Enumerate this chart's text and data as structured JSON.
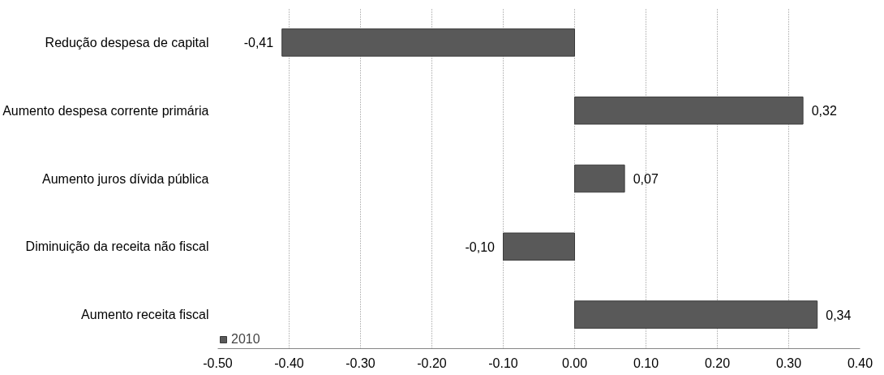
{
  "chart_data": {
    "type": "bar",
    "orientation": "horizontal",
    "categories": [
      "Redução despesa de capital",
      "Aumento despesa corrente primária",
      "Aumento juros dívida pública",
      "Diminuição da receita não fiscal",
      "Aumento receita fiscal"
    ],
    "series": [
      {
        "name": "2010",
        "color": "#595959",
        "values": [
          -0.41,
          0.32,
          0.07,
          -0.1,
          0.34
        ],
        "value_labels": [
          "-0,41",
          "0,32",
          "0,07",
          "-0,10",
          "0,34"
        ]
      }
    ],
    "xlim": [
      -0.5,
      0.4
    ],
    "xticks": [
      {
        "value": -0.5,
        "label": "-0.50"
      },
      {
        "value": -0.4,
        "label": "-0.40"
      },
      {
        "value": -0.3,
        "label": "-0.30"
      },
      {
        "value": -0.2,
        "label": "-0.20"
      },
      {
        "value": -0.1,
        "label": "-0.10"
      },
      {
        "value": 0,
        "label": "0.00"
      },
      {
        "value": 0.1,
        "label": "0.10"
      },
      {
        "value": 0.2,
        "label": "0.20"
      },
      {
        "value": 0.3,
        "label": "0.30"
      },
      {
        "value": 0.4,
        "label": "0.40"
      }
    ],
    "grid": "x",
    "legend": "bottom left"
  }
}
